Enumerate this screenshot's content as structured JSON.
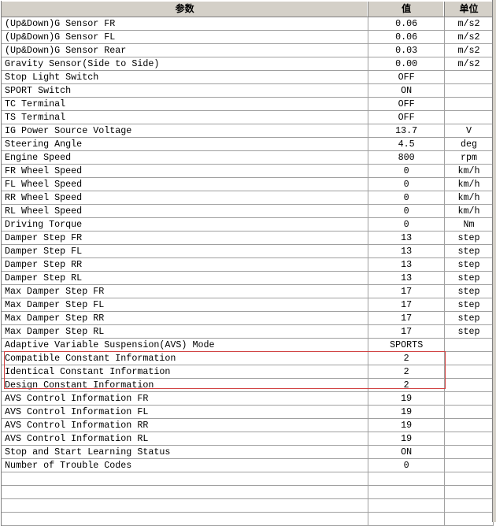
{
  "header": {
    "param": "参数",
    "value": "值",
    "unit": "单位"
  },
  "rows": [
    {
      "param": "(Up&Down)G Sensor FR",
      "value": "0.06",
      "unit": "m/s2"
    },
    {
      "param": "(Up&Down)G Sensor FL",
      "value": "0.06",
      "unit": "m/s2"
    },
    {
      "param": "(Up&Down)G Sensor Rear",
      "value": "0.03",
      "unit": "m/s2"
    },
    {
      "param": "Gravity Sensor(Side to Side)",
      "value": "0.00",
      "unit": "m/s2"
    },
    {
      "param": "Stop Light Switch",
      "value": "OFF",
      "unit": ""
    },
    {
      "param": "SPORT Switch",
      "value": "ON",
      "unit": ""
    },
    {
      "param": "TC Terminal",
      "value": "OFF",
      "unit": ""
    },
    {
      "param": "TS Terminal",
      "value": "OFF",
      "unit": ""
    },
    {
      "param": "IG Power Source Voltage",
      "value": "13.7",
      "unit": "V"
    },
    {
      "param": "Steering Angle",
      "value": "4.5",
      "unit": "deg"
    },
    {
      "param": "Engine Speed",
      "value": "800",
      "unit": "rpm"
    },
    {
      "param": "FR Wheel Speed",
      "value": "0",
      "unit": "km/h"
    },
    {
      "param": "FL Wheel Speed",
      "value": "0",
      "unit": "km/h"
    },
    {
      "param": "RR Wheel Speed",
      "value": "0",
      "unit": "km/h"
    },
    {
      "param": "RL Wheel Speed",
      "value": "0",
      "unit": "km/h"
    },
    {
      "param": "Driving Torque",
      "value": "0",
      "unit": "Nm"
    },
    {
      "param": "Damper Step FR",
      "value": "13",
      "unit": "step"
    },
    {
      "param": "Damper Step FL",
      "value": "13",
      "unit": "step"
    },
    {
      "param": "Damper Step RR",
      "value": "13",
      "unit": "step"
    },
    {
      "param": "Damper Step RL",
      "value": "13",
      "unit": "step"
    },
    {
      "param": "Max Damper Step FR",
      "value": "17",
      "unit": "step"
    },
    {
      "param": "Max Damper Step FL",
      "value": "17",
      "unit": "step"
    },
    {
      "param": "Max Damper Step RR",
      "value": "17",
      "unit": "step"
    },
    {
      "param": "Max Damper Step RL",
      "value": "17",
      "unit": "step"
    },
    {
      "param": "Adaptive Variable Suspension(AVS) Mode",
      "value": "SPORTS",
      "unit": ""
    },
    {
      "param": "Compatible Constant Information",
      "value": "2",
      "unit": ""
    },
    {
      "param": "Identical Constant Information",
      "value": "2",
      "unit": ""
    },
    {
      "param": "Design Constant Information",
      "value": "2",
      "unit": ""
    },
    {
      "param": "AVS Control Information FR",
      "value": "19",
      "unit": ""
    },
    {
      "param": "AVS Control Information FL",
      "value": "19",
      "unit": ""
    },
    {
      "param": "AVS Control Information RR",
      "value": "19",
      "unit": ""
    },
    {
      "param": "AVS Control Information RL",
      "value": "19",
      "unit": ""
    },
    {
      "param": "Stop and Start Learning Status",
      "value": "ON",
      "unit": ""
    },
    {
      "param": "Number of Trouble Codes",
      "value": "0",
      "unit": ""
    }
  ],
  "empty_rows": 4,
  "highlight_color": "#d04040"
}
